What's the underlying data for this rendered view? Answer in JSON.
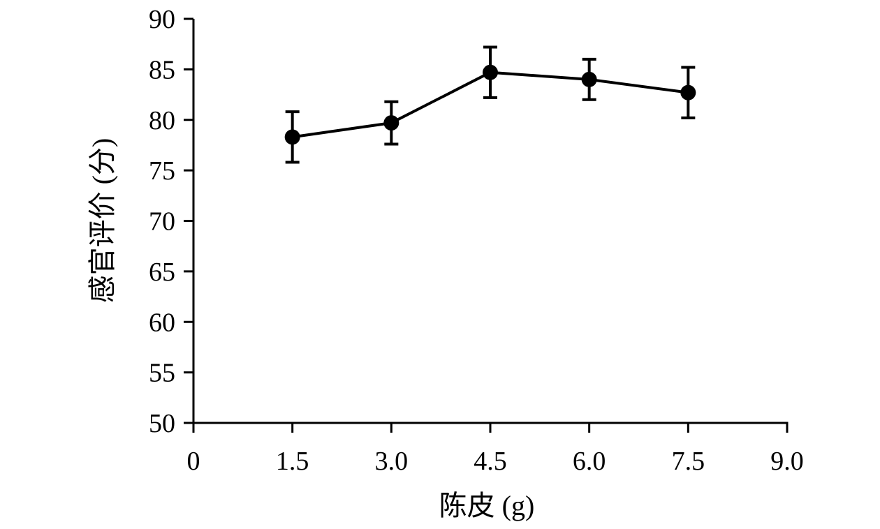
{
  "chart_data": {
    "type": "line",
    "title": "",
    "xlabel": "陈皮 (g)",
    "ylabel": "感官评价 (分)",
    "xlim": [
      0,
      9.0
    ],
    "ylim": [
      50,
      90
    ],
    "x_ticks": [
      "0",
      "1.5",
      "3.0",
      "4.5",
      "6.0",
      "7.5",
      "9.0"
    ],
    "x_tick_values": [
      0,
      1.5,
      3.0,
      4.5,
      6.0,
      7.5,
      9.0
    ],
    "y_ticks": [
      "50",
      "55",
      "60",
      "65",
      "70",
      "75",
      "80",
      "85",
      "90"
    ],
    "y_tick_values": [
      50,
      55,
      60,
      65,
      70,
      75,
      80,
      85,
      90
    ],
    "grid": false,
    "legend": "none",
    "series": [
      {
        "x": [
          1.5,
          3.0,
          4.5,
          6.0,
          7.5
        ],
        "y": [
          78.3,
          79.7,
          84.7,
          84.0,
          82.7
        ],
        "error": [
          2.5,
          2.1,
          2.5,
          2.0,
          2.5
        ],
        "color": "#000000",
        "marker": "filled-circle"
      }
    ]
  }
}
